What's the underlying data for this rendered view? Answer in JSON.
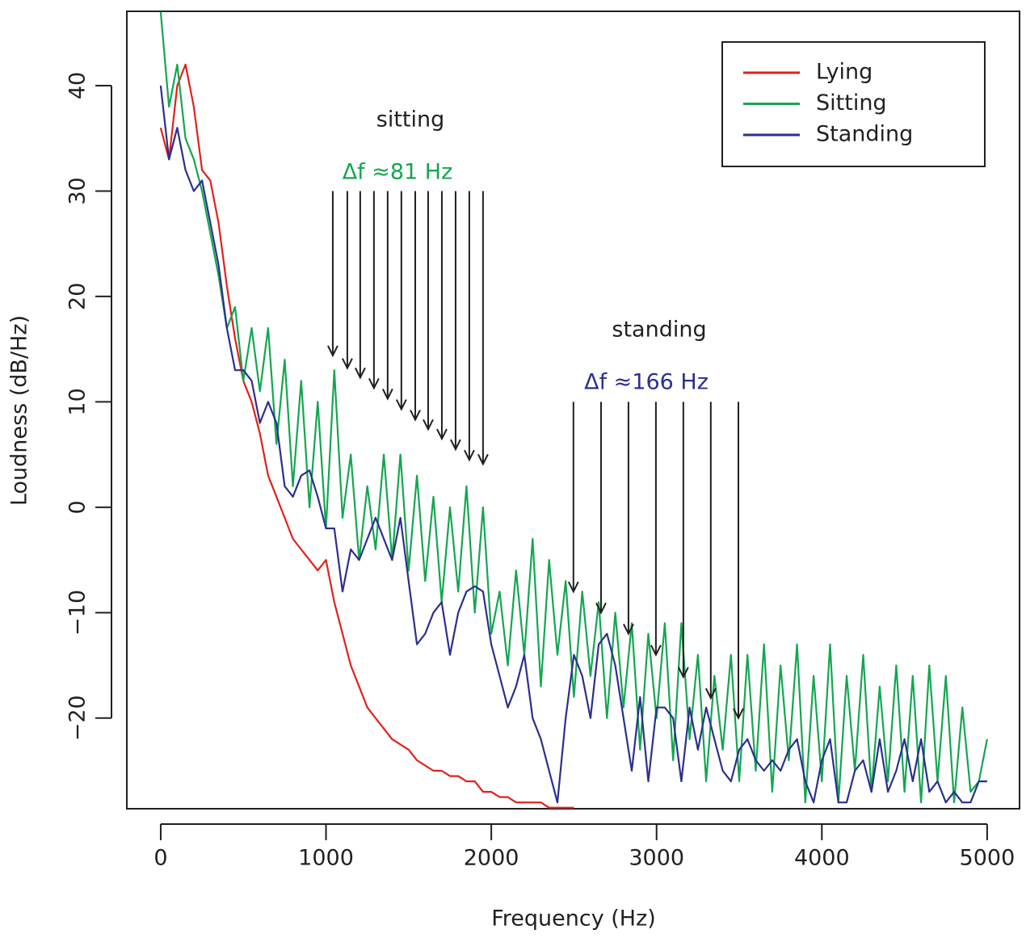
{
  "chart_data": {
    "type": "line",
    "x_label": "Frequency (Hz)",
    "y_label": "Loudness (dB/Hz)",
    "xlim": [
      -205,
      5196
    ],
    "ylim": [
      -28.6,
      47.05
    ],
    "xticks": [
      0,
      1000,
      2000,
      3000,
      4000,
      5000
    ],
    "yticks": [
      {
        "value": -20,
        "label": "−20"
      },
      {
        "value": -10,
        "label": "−10"
      },
      0,
      10,
      20,
      30,
      40
    ],
    "legend": "top-right",
    "x": [
      0,
      50,
      100,
      150,
      200,
      250,
      300,
      350,
      400,
      450,
      500,
      550,
      600,
      650,
      700,
      750,
      800,
      850,
      900,
      950,
      1000,
      1050,
      1100,
      1150,
      1200,
      1250,
      1300,
      1350,
      1400,
      1450,
      1500,
      1550,
      1600,
      1650,
      1700,
      1750,
      1800,
      1850,
      1900,
      1950,
      2000,
      2050,
      2100,
      2150,
      2200,
      2250,
      2300,
      2350,
      2400,
      2450,
      2500,
      2550,
      2600,
      2650,
      2700,
      2750,
      2800,
      2850,
      2900,
      2950,
      3000,
      3050,
      3100,
      3150,
      3200,
      3250,
      3300,
      3350,
      3400,
      3450,
      3500,
      3550,
      3600,
      3650,
      3700,
      3750,
      3800,
      3850,
      3900,
      3950,
      4000,
      4050,
      4100,
      4150,
      4200,
      4250,
      4300,
      4350,
      4400,
      4450,
      4500,
      4550,
      4600,
      4650,
      4700,
      4750,
      4800,
      4850,
      4900,
      4950,
      5000
    ],
    "series": [
      {
        "name": "Lying",
        "color": "#e3201b",
        "values": [
          36,
          33,
          40,
          42,
          38,
          32,
          31,
          27,
          21,
          16,
          12,
          10,
          7,
          3,
          1,
          -1,
          -3,
          -4,
          -5,
          -6,
          -5,
          -9,
          -12,
          -15,
          -17,
          -19,
          -20,
          -21,
          -22,
          -22.5,
          -23,
          -24,
          -24.5,
          -25,
          -25,
          -25.5,
          -25.5,
          -26,
          -26,
          -27,
          -27,
          -27.5,
          -27.5,
          -28,
          -28,
          -28,
          -28,
          -28.5,
          -28.5,
          -28.5,
          -28.5,
          null,
          null,
          null,
          null,
          null,
          null,
          null,
          null,
          null,
          null,
          null,
          null,
          null,
          null,
          null,
          null,
          null,
          null,
          null,
          null,
          null,
          null,
          null,
          null,
          null,
          null,
          null,
          null,
          null,
          null,
          null,
          null,
          null,
          null,
          null,
          null,
          null,
          null,
          null,
          null,
          null,
          null,
          null,
          null,
          null,
          null,
          null,
          null,
          null,
          null
        ]
      },
      {
        "name": "Sitting",
        "color": "#14a651",
        "values": [
          47,
          38,
          42,
          35,
          33,
          30,
          26,
          22,
          17,
          19,
          12,
          17,
          11,
          17,
          6,
          14,
          2,
          12,
          0,
          10,
          -2,
          13,
          -1,
          5,
          -5,
          2,
          -4,
          5,
          -5,
          5,
          -6,
          3,
          -7,
          1,
          -9,
          0,
          -8,
          2,
          -10,
          0,
          -12,
          -8,
          -15,
          -6,
          -14,
          -3,
          -17,
          -5,
          -14,
          -7,
          -18,
          -8,
          -16,
          -9,
          -20,
          -10,
          -19,
          -11,
          -23,
          -12,
          -20,
          -11,
          -24,
          -11,
          -22,
          -14,
          -26,
          -16,
          -23,
          -14,
          -26,
          -14,
          -25,
          -13,
          -27,
          -15,
          -24,
          -13,
          -28,
          -16,
          -26,
          -13,
          -28,
          -16,
          -25,
          -14,
          -27,
          -17,
          -26,
          -15,
          -27,
          -16,
          -28,
          -15,
          -26,
          -16,
          -28,
          -19,
          -27,
          -26,
          -22
        ]
      },
      {
        "name": "Standing",
        "color": "#2b2f8f",
        "values": [
          40,
          33,
          36,
          32,
          30,
          31,
          27,
          23,
          17,
          13,
          13,
          12,
          8,
          10,
          8,
          2,
          1,
          3,
          3.5,
          1,
          -2,
          -2,
          -8,
          -4,
          -5,
          -3,
          -1,
          -3,
          -5,
          -1,
          -7,
          -13,
          -12,
          -10,
          -9,
          -14,
          -10,
          -8,
          -7.5,
          -8,
          -13,
          -16,
          -19,
          -17,
          -14,
          -20,
          -22,
          -25,
          -28,
          -20,
          -14,
          -16,
          -20,
          -13,
          -12,
          -15,
          -20,
          -25,
          -18,
          -26,
          -19,
          -19,
          -20,
          -26,
          -19,
          -23,
          -19,
          -22,
          -25,
          -26,
          -23,
          -22,
          -24,
          -25,
          -24,
          -25,
          -23,
          -22,
          -26,
          -28,
          -24,
          -22,
          -28,
          -28,
          -25,
          -24,
          -27,
          -22,
          -27,
          -25,
          -22,
          -26,
          -22,
          -27,
          -26,
          -28,
          -27,
          -28,
          -28,
          -26,
          -26
        ]
      }
    ],
    "annotations": [
      {
        "label": "sitting",
        "color": "#231f20"
      },
      {
        "label": "Δf  ≈81 Hz",
        "color": "#14a651"
      },
      {
        "label": "standing",
        "color": "#231f20"
      },
      {
        "label": "Δf  ≈166 Hz",
        "color": "#2b2f8f"
      }
    ],
    "sitting_arrows": {
      "y_start": 30,
      "x": [
        1041,
        1129,
        1207,
        1290,
        1373,
        1456,
        1540,
        1618,
        1701,
        1784,
        1867,
        1950
      ],
      "y_end": [
        14.4,
        13.2,
        12.3,
        11.3,
        10.3,
        9.3,
        8.3,
        7.4,
        6.5,
        5.5,
        4.5,
        4.1
      ]
    },
    "standing_arrows": {
      "y_start": 10,
      "x": [
        2497,
        2664,
        2830,
        2996,
        3162,
        3328,
        3495
      ],
      "y_end": [
        -8,
        -10,
        -12,
        -14,
        -16.1,
        -18.1,
        -20
      ]
    }
  }
}
